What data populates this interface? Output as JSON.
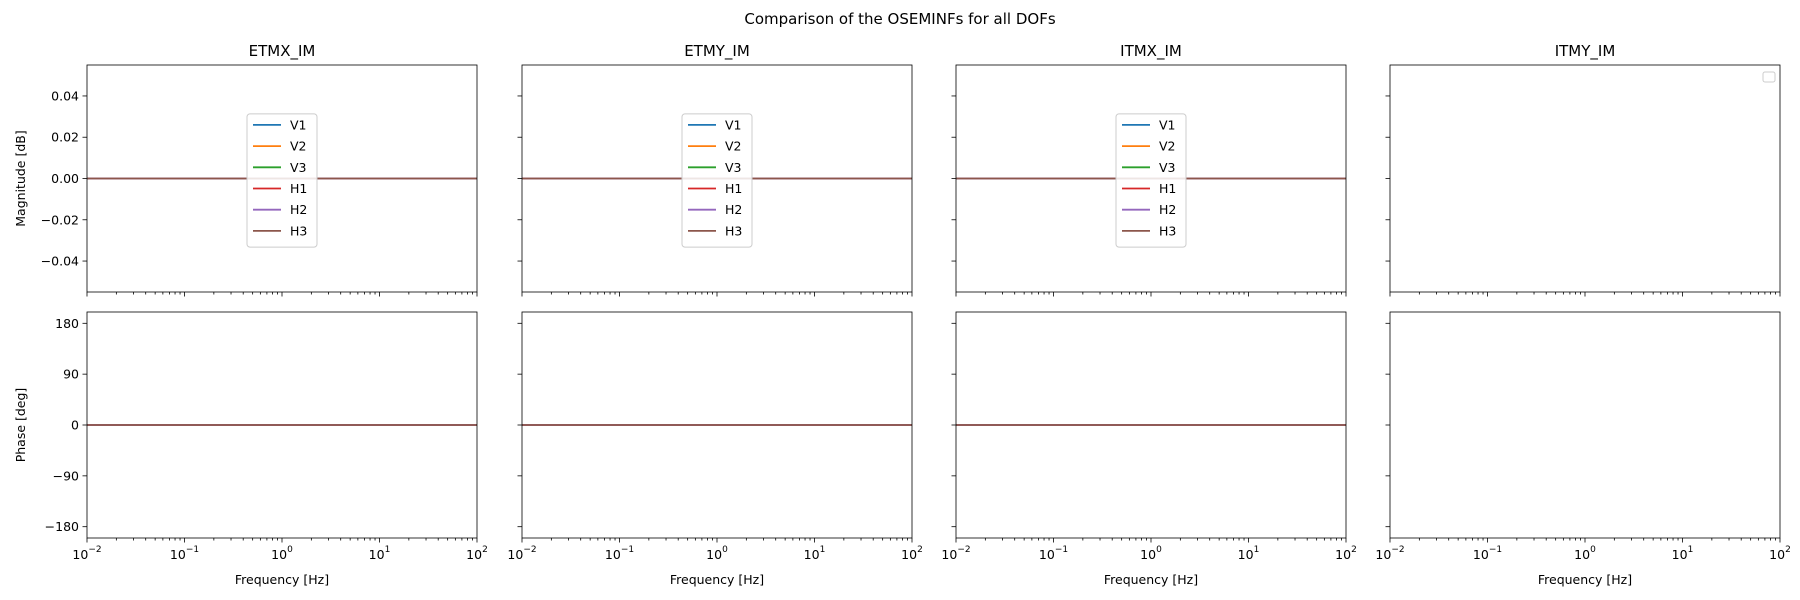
{
  "suptitle": "Comparison of the OSEMINFs for all DOFs",
  "chart_data": {
    "type": "line",
    "xscale": "log",
    "xlim": [
      0.01,
      100
    ],
    "x": [
      0.01,
      100
    ],
    "xlabel": "Frequency [Hz]",
    "xticks": [
      {
        "base": "10",
        "exp": "−2"
      },
      {
        "base": "10",
        "exp": "−1"
      },
      {
        "base": "10",
        "exp": "0"
      },
      {
        "base": "10",
        "exp": "1"
      },
      {
        "base": "10",
        "exp": "2"
      }
    ],
    "magnitude": {
      "ylabel": "Magnitude [dB]",
      "ylim": [
        -0.055,
        0.055
      ],
      "yticks": [
        {
          "value": 0.04,
          "label": "0.04"
        },
        {
          "value": 0.02,
          "label": "0.02"
        },
        {
          "value": 0.0,
          "label": "0.00"
        },
        {
          "value": -0.02,
          "label": "−0.02"
        },
        {
          "value": -0.04,
          "label": "−0.04"
        }
      ]
    },
    "phase": {
      "ylabel": "Phase [deg]",
      "ylim": [
        -200,
        200
      ],
      "yticks": [
        {
          "value": 180,
          "label": "180"
        },
        {
          "value": 90,
          "label": "90"
        },
        {
          "value": 0,
          "label": "0"
        },
        {
          "value": -90,
          "label": "−90"
        },
        {
          "value": -180,
          "label": "−180"
        }
      ]
    },
    "series_style": [
      {
        "name": "V1",
        "color": "#1f77b4"
      },
      {
        "name": "V2",
        "color": "#ff7f0e"
      },
      {
        "name": "V3",
        "color": "#2ca02c"
      },
      {
        "name": "H1",
        "color": "#d62728"
      },
      {
        "name": "H2",
        "color": "#9467bd"
      },
      {
        "name": "H3",
        "color": "#8c564b"
      }
    ],
    "panels": [
      {
        "title": "ETMX_IM",
        "legend": "center",
        "series": [
          {
            "name": "V1",
            "magnitude": [
              0,
              0
            ],
            "phase": [
              0,
              0
            ]
          },
          {
            "name": "V2",
            "magnitude": [
              0,
              0
            ],
            "phase": [
              0,
              0
            ]
          },
          {
            "name": "V3",
            "magnitude": [
              0,
              0
            ],
            "phase": [
              0,
              0
            ]
          },
          {
            "name": "H1",
            "magnitude": [
              0,
              0
            ],
            "phase": [
              0,
              0
            ]
          },
          {
            "name": "H2",
            "magnitude": [
              0,
              0
            ],
            "phase": [
              0,
              0
            ]
          },
          {
            "name": "H3",
            "magnitude": [
              0,
              0
            ],
            "phase": [
              0,
              0
            ]
          }
        ]
      },
      {
        "title": "ETMY_IM",
        "legend": "center",
        "series": [
          {
            "name": "V1",
            "magnitude": [
              0,
              0
            ],
            "phase": [
              0,
              0
            ]
          },
          {
            "name": "V2",
            "magnitude": [
              0,
              0
            ],
            "phase": [
              0,
              0
            ]
          },
          {
            "name": "V3",
            "magnitude": [
              0,
              0
            ],
            "phase": [
              0,
              0
            ]
          },
          {
            "name": "H1",
            "magnitude": [
              0,
              0
            ],
            "phase": [
              0,
              0
            ]
          },
          {
            "name": "H2",
            "magnitude": [
              0,
              0
            ],
            "phase": [
              0,
              0
            ]
          },
          {
            "name": "H3",
            "magnitude": [
              0,
              0
            ],
            "phase": [
              0,
              0
            ]
          }
        ]
      },
      {
        "title": "ITMX_IM",
        "legend": "center",
        "series": [
          {
            "name": "V1",
            "magnitude": [
              0,
              0
            ],
            "phase": [
              0,
              0
            ]
          },
          {
            "name": "V2",
            "magnitude": [
              0,
              0
            ],
            "phase": [
              0,
              0
            ]
          },
          {
            "name": "V3",
            "magnitude": [
              0,
              0
            ],
            "phase": [
              0,
              0
            ]
          },
          {
            "name": "H1",
            "magnitude": [
              0,
              0
            ],
            "phase": [
              0,
              0
            ]
          },
          {
            "name": "H2",
            "magnitude": [
              0,
              0
            ],
            "phase": [
              0,
              0
            ]
          },
          {
            "name": "H3",
            "magnitude": [
              0,
              0
            ],
            "phase": [
              0,
              0
            ]
          }
        ]
      },
      {
        "title": "ITMY_IM",
        "legend": "top-right (empty)",
        "series": []
      }
    ]
  }
}
